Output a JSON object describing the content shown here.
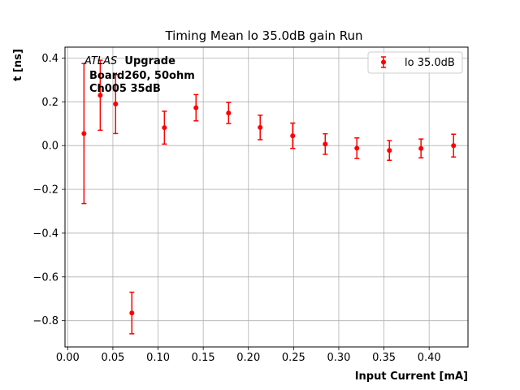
{
  "chart_data": {
    "type": "scatter",
    "title": "Timing Mean lo 35.0dB gain Run",
    "xlabel": "Input Current [mA]",
    "ylabel": "t [ns]",
    "xlim": [
      -0.003,
      0.443
    ],
    "ylim": [
      -0.92,
      0.45
    ],
    "xticks": [
      0.0,
      0.05,
      0.1,
      0.15,
      0.2,
      0.25,
      0.3,
      0.35,
      0.4
    ],
    "xtick_labels": [
      "0.00",
      "0.05",
      "0.10",
      "0.15",
      "0.20",
      "0.25",
      "0.30",
      "0.35",
      "0.40"
    ],
    "yticks": [
      0.4,
      0.2,
      0.0,
      -0.2,
      -0.4,
      -0.6,
      -0.8
    ],
    "ytick_labels": [
      "0.4",
      "0.2",
      "0.0",
      "−0.2",
      "−0.4",
      "−0.6",
      "−0.8"
    ],
    "grid": true,
    "legend_position": "top-right",
    "annotation": {
      "line1_italic": "ATLAS",
      "line1_bold": "Upgrade",
      "line2": "Board260, 50ohm",
      "line3": "Ch005 35dB"
    },
    "series": [
      {
        "name": "lo 35.0dB",
        "color": "#ff0000",
        "x": [
          0.018,
          0.036,
          0.053,
          0.071,
          0.107,
          0.142,
          0.178,
          0.213,
          0.249,
          0.285,
          0.32,
          0.356,
          0.391,
          0.427
        ],
        "y": [
          0.055,
          0.23,
          0.19,
          -0.765,
          0.082,
          0.173,
          0.149,
          0.083,
          0.045,
          0.007,
          -0.012,
          -0.022,
          -0.013,
          0.0
        ],
        "yerr": [
          0.32,
          0.16,
          0.135,
          0.095,
          0.075,
          0.06,
          0.048,
          0.056,
          0.058,
          0.047,
          0.047,
          0.045,
          0.043,
          0.052
        ]
      }
    ]
  }
}
